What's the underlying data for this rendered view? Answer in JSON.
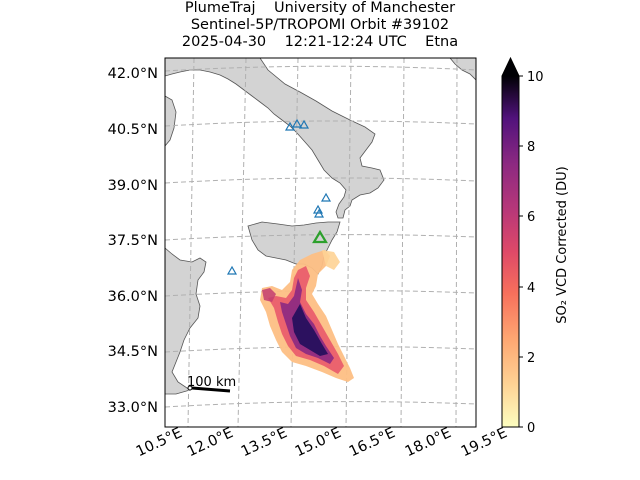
{
  "title": {
    "line1": "PlumeTraj    University of Manchester",
    "line2": "Sentinel-5P/TROPOMI Orbit #39102",
    "line3": "2025-04-30    12:21-12:24 UTC    Etna"
  },
  "map": {
    "lat_labels": [
      "42.0°N",
      "40.5°N",
      "39.0°N",
      "37.5°N",
      "36.0°N",
      "34.5°N",
      "33.0°N"
    ],
    "lon_labels": [
      "10.5°E",
      "12.0°E",
      "13.5°E",
      "15.0°E",
      "16.5°E",
      "18.0°E",
      "19.5°E"
    ],
    "scale_bar_label": "100 km",
    "land_color": "#d3d3d3",
    "ocean_color": "#ffffff",
    "gridline_color": "#b0b0b0",
    "source_marker_color": "#2ca02c",
    "volcano_marker_color": "#1f77b4"
  },
  "colorbar": {
    "label": "SO₂ VCD Corrected (DU)",
    "tick_labels": [
      "0",
      "2",
      "4",
      "6",
      "8",
      "10"
    ],
    "colormap": "magma_r",
    "extend": "max"
  }
}
